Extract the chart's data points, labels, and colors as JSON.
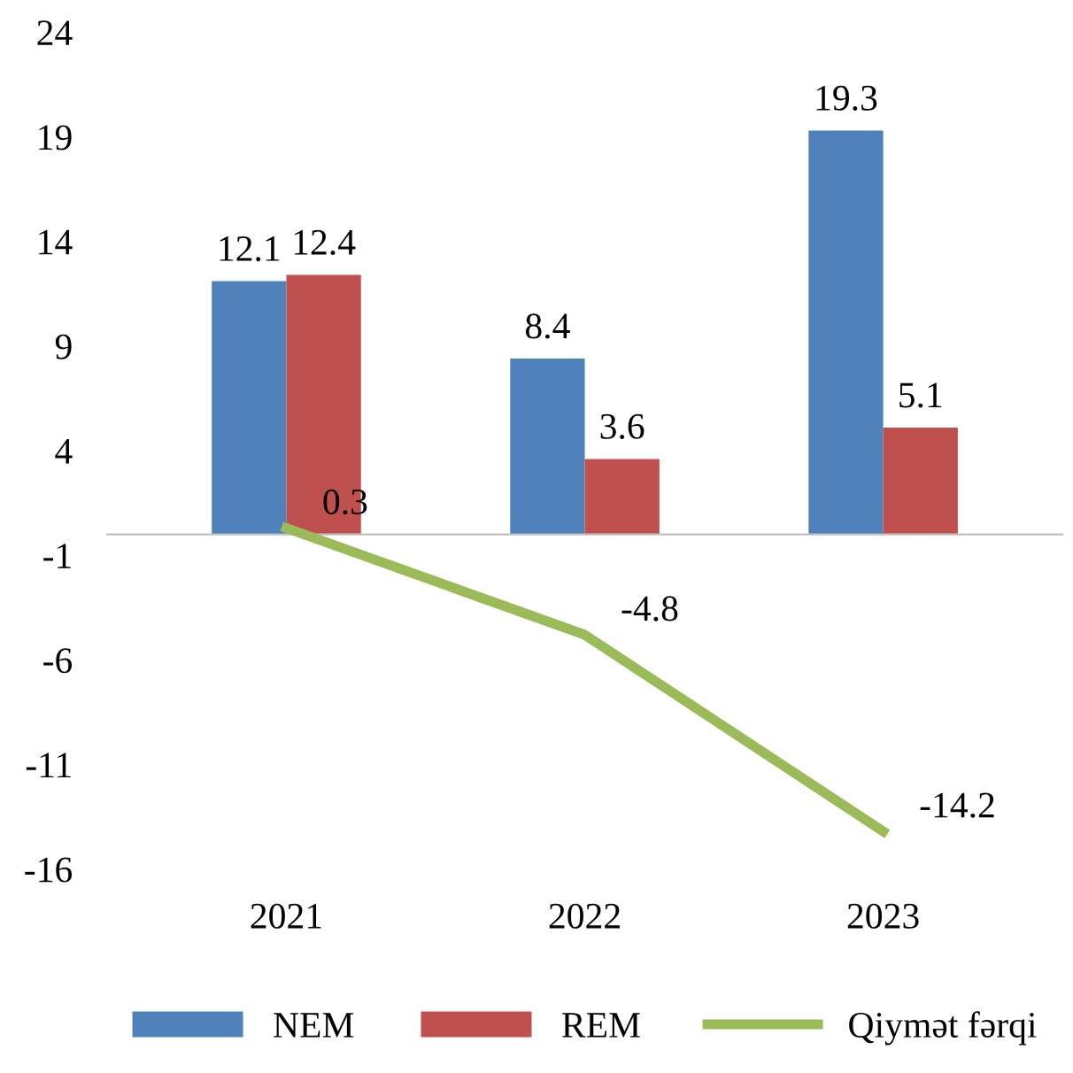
{
  "chart_data": {
    "type": "bar",
    "categories": [
      "2021",
      "2022",
      "2023"
    ],
    "series": [
      {
        "name": "NEM",
        "color": "#4f81bd",
        "values": [
          12.1,
          8.4,
          19.3
        ]
      },
      {
        "name": "REM",
        "color": "#c0504d",
        "values": [
          12.4,
          3.6,
          5.1
        ]
      },
      {
        "name": "Qiymət fərqi",
        "type": "line",
        "color": "#9bbb59",
        "values": [
          0.3,
          -4.8,
          -14.2
        ]
      }
    ],
    "ylim": [
      -16,
      24
    ],
    "yticks": [
      -16,
      -11,
      -6,
      -1,
      4,
      9,
      14,
      19,
      24
    ],
    "data_labels": true,
    "grid": false,
    "legend": "bottom",
    "marker": "none"
  }
}
